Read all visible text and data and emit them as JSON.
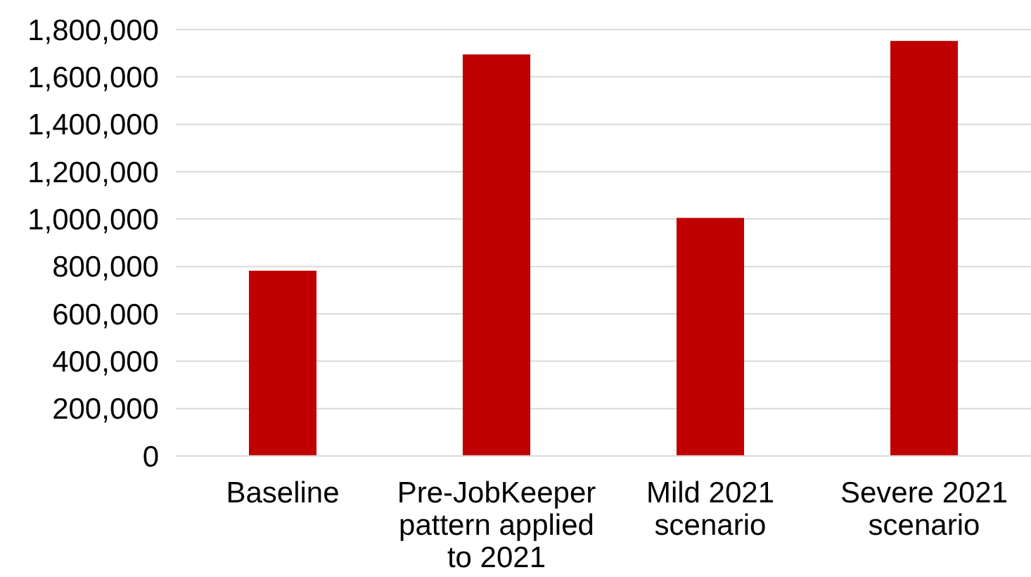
{
  "chart_data": {
    "type": "bar",
    "categories": [
      "Baseline",
      "Pre-JobKeeper pattern applied to 2021",
      "Mild 2021 scenario",
      "Severe 2021 scenario"
    ],
    "values": [
      782000,
      1695000,
      1005000,
      1752000
    ],
    "color": "#c00000",
    "ylim": [
      0,
      1800000
    ],
    "yticks": [
      {
        "value": 0,
        "label": "0"
      },
      {
        "value": 200000,
        "label": "200,000"
      },
      {
        "value": 400000,
        "label": "400,000"
      },
      {
        "value": 600000,
        "label": "600,000"
      },
      {
        "value": 800000,
        "label": "800,000"
      },
      {
        "value": 1000000,
        "label": "1,000,000"
      },
      {
        "value": 1200000,
        "label": "1,200,000"
      },
      {
        "value": 1400000,
        "label": "1,400,000"
      },
      {
        "value": 1600000,
        "label": "1,600,000"
      },
      {
        "value": 1800000,
        "label": "1,800,000"
      }
    ],
    "grid": "y"
  }
}
